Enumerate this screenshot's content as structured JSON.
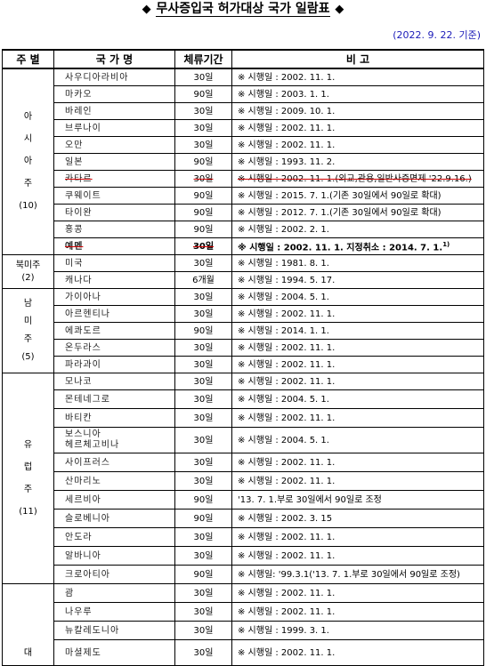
{
  "title": {
    "left_mark": "◆",
    "text": "무사증입국 허가대상 국가 일람표",
    "right_mark": "◆"
  },
  "date_note": "(2022. 9. 22. 기준)",
  "headers": {
    "region": "주 별",
    "country": "국 가 명",
    "stay": "체류기간",
    "note": "비      고"
  },
  "regions": {
    "asia": [
      "아",
      "시",
      "아",
      "주",
      "(10)"
    ],
    "north_america": [
      "북미주",
      "(2)"
    ],
    "south_america": [
      "남",
      "미",
      "주",
      "(5)"
    ],
    "europe": [
      "유",
      "럽",
      "주",
      "(11)"
    ],
    "oceania": [
      "대"
    ]
  },
  "rows": [
    {
      "country": "사우디아라비아",
      "stay": "30일",
      "note": "※ 시행일 : 2002. 11. 1."
    },
    {
      "country": "마카오",
      "stay": "90일",
      "note": "※ 시행일 : 2003. 1. 1."
    },
    {
      "country": "바레인",
      "stay": "30일",
      "note": "※ 시행일 : 2009. 10. 1."
    },
    {
      "country": "브루나이",
      "stay": "30일",
      "note": "※ 시행일 : 2002. 11. 1."
    },
    {
      "country": "오만",
      "stay": "30일",
      "note": "※ 시행일 : 2002. 11. 1."
    },
    {
      "country": "일본",
      "stay": "90일",
      "note": "※ 시행일 : 1993. 11. 2."
    },
    {
      "country": "카타르",
      "stay": "30일",
      "note": "※ 시행일 : 2002. 11. 1.(외교,관용,일반사증면제 '22.9.16.)",
      "struck": true
    },
    {
      "country": "쿠웨이트",
      "stay": "90일",
      "note": "※ 시행일 : 2015. 7. 1.(기존 30일에서 90일로 확대)"
    },
    {
      "country": "타이완",
      "stay": "90일",
      "note": "※ 시행일 : 2012. 7. 1.(기존 30일에서 90일로 확대)"
    },
    {
      "country": "홍콩",
      "stay": "90일",
      "note": "※ 시행일 : 2002. 2. 1."
    },
    {
      "country": "예멘",
      "stay": "30일",
      "note": "※ 시행일 : 2002. 11. 1. 지정취소 : 2014. 7. 1.",
      "sup": "1)",
      "struck_name": true,
      "bold": true
    },
    {
      "country": "미국",
      "stay": "30일",
      "note": "※ 시행일 : 1981. 8. 1."
    },
    {
      "country": "캐나다",
      "stay": "6개월",
      "note": "※ 시행일 : 1994. 5. 17."
    },
    {
      "country": "가이아나",
      "stay": "30일",
      "note": "※ 시행일 : 2004. 5. 1."
    },
    {
      "country": "아르헨티나",
      "stay": "30일",
      "note": "※ 시행일 : 2002. 11. 1."
    },
    {
      "country": "에콰도르",
      "stay": "90일",
      "note": "※ 시행일 : 2014. 1. 1."
    },
    {
      "country": "온두라스",
      "stay": "30일",
      "note": "※ 시행일 : 2002. 11. 1."
    },
    {
      "country": "파라과이",
      "stay": "30일",
      "note": "※ 시행일 : 2002. 11. 1."
    },
    {
      "country": "모나코",
      "stay": "30일",
      "note": "※ 시행일 : 2002. 11. 1."
    },
    {
      "country": "몬테네그로",
      "stay": "30일",
      "note": "※ 시행일 : 2004. 5. 1."
    },
    {
      "country": "바티칸",
      "stay": "30일",
      "note": "※ 시행일 : 2002. 11. 1."
    },
    {
      "country": "보스니아",
      "country2": "헤르체고비나",
      "stay": "30일",
      "note": "※ 시행일 : 2004. 5. 1."
    },
    {
      "country": "사이프러스",
      "stay": "30일",
      "note": "※ 시행일 : 2002. 11. 1."
    },
    {
      "country": "산마리노",
      "stay": "30일",
      "note": "※ 시행일 : 2002. 11. 1."
    },
    {
      "country": "세르비아",
      "stay": "90일",
      "note": "'13. 7. 1.부로 30일에서 90일로 조정"
    },
    {
      "country": "슬로베니아",
      "stay": "90일",
      "note": "※ 시행일 : 2002. 3. 15"
    },
    {
      "country": "안도라",
      "stay": "30일",
      "note": "※ 시행일 : 2002. 11. 1."
    },
    {
      "country": "알바니아",
      "stay": "30일",
      "note": "※ 시행일 : 2002. 11. 1."
    },
    {
      "country": "크로아티아",
      "stay": "90일",
      "note": "※ 시행일: '99.3.1('13. 7. 1.부로 30일에서 90일로 조정)"
    },
    {
      "country": "괌",
      "stay": "30일",
      "note": "※ 시행일 : 2002. 11. 1."
    },
    {
      "country": "나우루",
      "stay": "30일",
      "note": "※ 시행일 : 2002. 11. 1."
    },
    {
      "country": "뉴칼레도니아",
      "stay": "30일",
      "note": "※ 시행일 : 1999. 3. 1."
    },
    {
      "country": "마셜제도",
      "stay": "30일",
      "note": "※ 시행일 : 2002. 11. 1."
    }
  ]
}
